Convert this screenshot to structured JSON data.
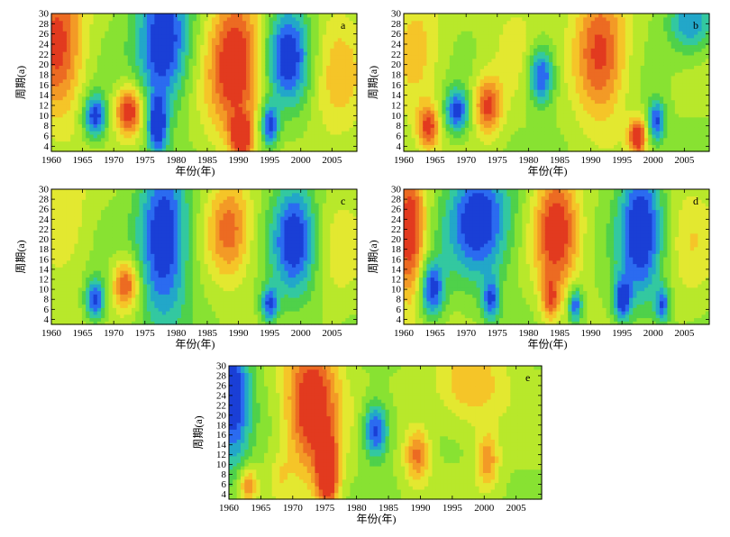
{
  "figure": {
    "ylabel": "周期(a)",
    "xlabel": "年份(年)"
  },
  "chart_data": [
    {
      "type": "heatmap",
      "panel_label": "a",
      "xlabel": "年份(年)",
      "ylabel": "周期(a)",
      "xlim": [
        1960,
        2009
      ],
      "ylim": [
        3,
        30
      ],
      "x_ticks": [
        1960,
        1965,
        1970,
        1975,
        1980,
        1985,
        1990,
        1995,
        2000,
        2005
      ],
      "y_ticks": [
        4,
        6,
        8,
        10,
        12,
        14,
        16,
        18,
        20,
        22,
        24,
        26,
        28,
        30
      ],
      "features": [
        {
          "x": 1961,
          "y": 24,
          "sx": 3,
          "sy": 10,
          "v": 0.85
        },
        {
          "x": 1967,
          "y": 10,
          "sx": 1.3,
          "sy": 3,
          "v": -0.9
        },
        {
          "x": 1972.5,
          "y": 11,
          "sx": 1.6,
          "sy": 3.5,
          "v": 0.95
        },
        {
          "x": 1978,
          "y": 24,
          "sx": 3,
          "sy": 9,
          "v": -1
        },
        {
          "x": 1977,
          "y": 8,
          "sx": 1.1,
          "sy": 4,
          "v": -0.9
        },
        {
          "x": 1989.5,
          "y": 20,
          "sx": 3,
          "sy": 10,
          "v": 1
        },
        {
          "x": 1990.5,
          "y": 6,
          "sx": 1.1,
          "sy": 2.5,
          "v": 1
        },
        {
          "x": 1998,
          "y": 22,
          "sx": 2.5,
          "sy": 7,
          "v": -0.9
        },
        {
          "x": 1995,
          "y": 8,
          "sx": 1,
          "sy": 3,
          "v": -0.9
        },
        {
          "x": 2006,
          "y": 18,
          "sx": 3,
          "sy": 10,
          "v": 0.35
        },
        {
          "x": 1983,
          "y": 12,
          "sx": 3,
          "sy": 8,
          "v": 0.1
        }
      ]
    },
    {
      "type": "heatmap",
      "panel_label": "b",
      "xlabel": "年份(年)",
      "ylabel": "周期(a)",
      "xlim": [
        1960,
        2009
      ],
      "ylim": [
        3,
        30
      ],
      "x_ticks": [
        1960,
        1965,
        1970,
        1975,
        1980,
        1985,
        1990,
        1995,
        2000,
        2005
      ],
      "y_ticks": [
        4,
        6,
        8,
        10,
        12,
        14,
        16,
        18,
        20,
        22,
        24,
        26,
        28,
        30
      ],
      "features": [
        {
          "x": 1962,
          "y": 22,
          "sx": 3,
          "sy": 9,
          "v": 0.4
        },
        {
          "x": 1964,
          "y": 8,
          "sx": 1.2,
          "sy": 3,
          "v": 0.75
        },
        {
          "x": 1968.5,
          "y": 11,
          "sx": 1.4,
          "sy": 3,
          "v": -0.85
        },
        {
          "x": 1973.5,
          "y": 12,
          "sx": 1.6,
          "sy": 4,
          "v": 0.8
        },
        {
          "x": 1982,
          "y": 18,
          "sx": 1.5,
          "sy": 4,
          "v": -0.9
        },
        {
          "x": 1991.5,
          "y": 22,
          "sx": 3,
          "sy": 9,
          "v": 0.85
        },
        {
          "x": 1997.5,
          "y": 6,
          "sx": 1,
          "sy": 2.5,
          "v": 1
        },
        {
          "x": 2000.5,
          "y": 9,
          "sx": 1,
          "sy": 3,
          "v": -0.8
        },
        {
          "x": 2006,
          "y": 28,
          "sx": 2.5,
          "sy": 4,
          "v": -0.6
        },
        {
          "x": 1978,
          "y": 24,
          "sx": 3,
          "sy": 8,
          "v": 0.2
        }
      ]
    },
    {
      "type": "heatmap",
      "panel_label": "c",
      "xlabel": "年份(年)",
      "ylabel": "周期(a)",
      "xlim": [
        1960,
        2009
      ],
      "ylim": [
        3,
        30
      ],
      "x_ticks": [
        1960,
        1965,
        1970,
        1975,
        1980,
        1985,
        1990,
        1995,
        2000,
        2005
      ],
      "y_ticks": [
        4,
        6,
        8,
        10,
        12,
        14,
        16,
        18,
        20,
        22,
        24,
        26,
        28,
        30
      ],
      "features": [
        {
          "x": 1962,
          "y": 24,
          "sx": 3,
          "sy": 9,
          "v": 0.3
        },
        {
          "x": 1967,
          "y": 8,
          "sx": 1.1,
          "sy": 3,
          "v": -0.85
        },
        {
          "x": 1972,
          "y": 11,
          "sx": 1.5,
          "sy": 3.5,
          "v": 0.8
        },
        {
          "x": 1978,
          "y": 20,
          "sx": 2.8,
          "sy": 11,
          "v": -1
        },
        {
          "x": 1988.5,
          "y": 22,
          "sx": 2.5,
          "sy": 7,
          "v": 0.7
        },
        {
          "x": 1999,
          "y": 20,
          "sx": 2.5,
          "sy": 8,
          "v": -0.9
        },
        {
          "x": 1995,
          "y": 7,
          "sx": 1,
          "sy": 2.5,
          "v": -0.8
        },
        {
          "x": 2006,
          "y": 18,
          "sx": 3,
          "sy": 9,
          "v": 0.2
        }
      ]
    },
    {
      "type": "heatmap",
      "panel_label": "d",
      "xlabel": "年份(年)",
      "ylabel": "周期(a)",
      "xlim": [
        1960,
        2009
      ],
      "ylim": [
        3,
        30
      ],
      "x_ticks": [
        1960,
        1965,
        1970,
        1975,
        1980,
        1985,
        1990,
        1995,
        2000,
        2005
      ],
      "y_ticks": [
        4,
        6,
        8,
        10,
        12,
        14,
        16,
        18,
        20,
        22,
        24,
        26,
        28,
        30
      ],
      "features": [
        {
          "x": 1961,
          "y": 22,
          "sx": 1.8,
          "sy": 10,
          "v": 0.95
        },
        {
          "x": 1964.5,
          "y": 10,
          "sx": 1.4,
          "sy": 4,
          "v": -0.9
        },
        {
          "x": 1972,
          "y": 24,
          "sx": 3.5,
          "sy": 8,
          "v": -0.95
        },
        {
          "x": 1974,
          "y": 8,
          "sx": 1,
          "sy": 3,
          "v": -0.7
        },
        {
          "x": 1984.5,
          "y": 22,
          "sx": 2.5,
          "sy": 9,
          "v": 0.9
        },
        {
          "x": 1983.5,
          "y": 8,
          "sx": 1,
          "sy": 3,
          "v": 0.6
        },
        {
          "x": 1987.5,
          "y": 7,
          "sx": 0.8,
          "sy": 2.5,
          "v": -0.8
        },
        {
          "x": 1998,
          "y": 22,
          "sx": 2.5,
          "sy": 10,
          "v": -0.95
        },
        {
          "x": 1995,
          "y": 8,
          "sx": 1,
          "sy": 3,
          "v": -0.85
        },
        {
          "x": 2001.5,
          "y": 7,
          "sx": 0.8,
          "sy": 2.5,
          "v": -0.7
        },
        {
          "x": 2006,
          "y": 20,
          "sx": 3,
          "sy": 9,
          "v": 0.25
        }
      ]
    },
    {
      "type": "heatmap",
      "panel_label": "e",
      "xlabel": "年份(年)",
      "ylabel": "周期(a)",
      "xlim": [
        1960,
        2009
      ],
      "ylim": [
        3,
        30
      ],
      "x_ticks": [
        1960,
        1965,
        1970,
        1975,
        1980,
        1985,
        1990,
        1995,
        2000,
        2005
      ],
      "y_ticks": [
        4,
        6,
        8,
        10,
        12,
        14,
        16,
        18,
        20,
        22,
        24,
        26,
        28,
        30
      ],
      "features": [
        {
          "x": 1960.5,
          "y": 24,
          "sx": 2,
          "sy": 10,
          "v": -0.95
        },
        {
          "x": 1963,
          "y": 6,
          "sx": 1,
          "sy": 2.5,
          "v": 0.6
        },
        {
          "x": 1973,
          "y": 22,
          "sx": 3,
          "sy": 10,
          "v": 1
        },
        {
          "x": 1975.5,
          "y": 8,
          "sx": 1.2,
          "sy": 5,
          "v": 1
        },
        {
          "x": 1983,
          "y": 17,
          "sx": 1.4,
          "sy": 4,
          "v": -0.85
        },
        {
          "x": 1989.5,
          "y": 12,
          "sx": 1.4,
          "sy": 4,
          "v": 0.65
        },
        {
          "x": 2000.5,
          "y": 11,
          "sx": 1.3,
          "sy": 4,
          "v": 0.55
        },
        {
          "x": 1998,
          "y": 26,
          "sx": 4,
          "sy": 6,
          "v": 0.45
        },
        {
          "x": 1968,
          "y": 8,
          "sx": 1.2,
          "sy": 3,
          "v": 0.2
        }
      ]
    }
  ]
}
